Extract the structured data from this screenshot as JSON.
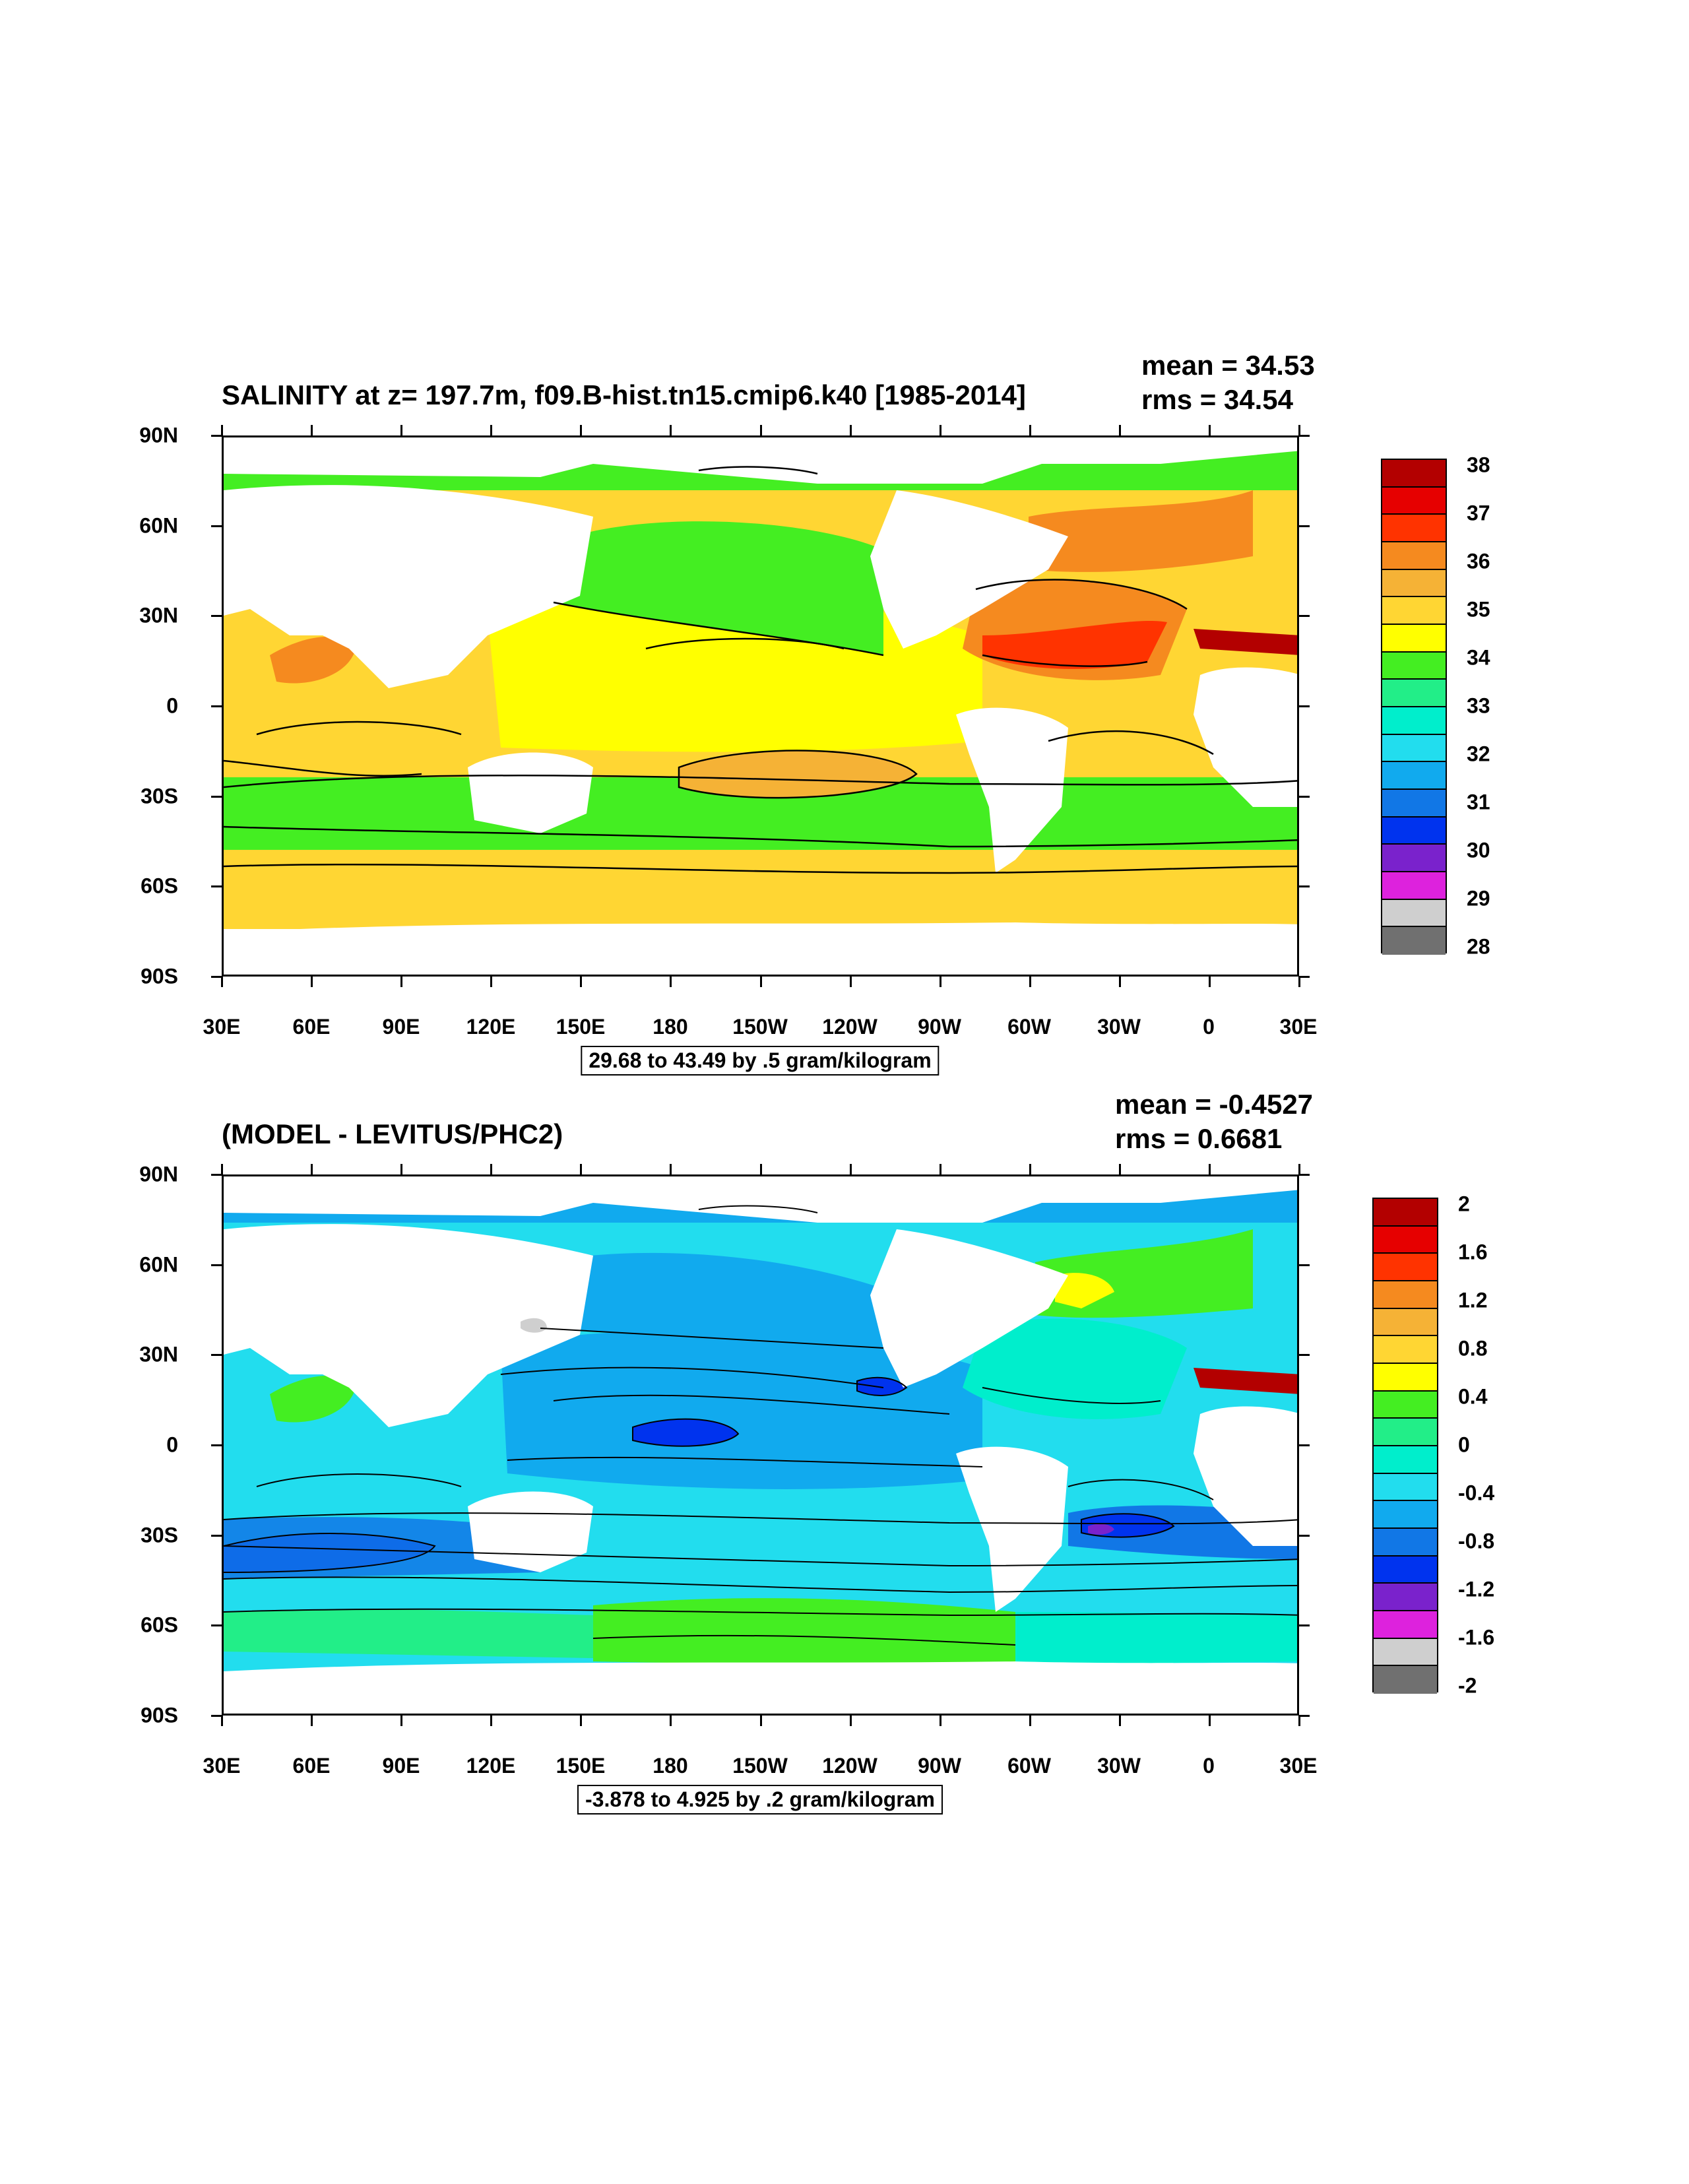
{
  "panels": [
    {
      "id": "top",
      "title": "SALINITY at z= 197.7m, f09.B-hist.tn15.cmip6.k40 [1985-2014]",
      "mean": "mean = 34.53",
      "rms": "rms = 34.54",
      "info": "29.68 to 43.49 by .5 gram/kilogram",
      "colorbar": {
        "labels": [
          "38",
          "37",
          "36",
          "35",
          "34",
          "33",
          "32",
          "31",
          "30",
          "29",
          "28"
        ],
        "colors": [
          "#b30000",
          "#e60000",
          "#ff3300",
          "#f58a1f",
          "#f5b236",
          "#ffd633",
          "#ffff00",
          "#44ee22",
          "#22ee88",
          "#00eecc",
          "#22ddee",
          "#11aaee",
          "#1177e6",
          "#0033ee",
          "#7a22cc",
          "#dd22dd",
          "#cfcfcf",
          "#707070"
        ]
      }
    },
    {
      "id": "bottom",
      "title": "(MODEL - LEVITUS/PHC2)",
      "mean": "mean = -0.4527",
      "rms": "rms = 0.6681",
      "info": "-3.878 to 4.925 by .2 gram/kilogram",
      "colorbar": {
        "labels": [
          "2",
          "1.6",
          "1.2",
          "0.8",
          "0.4",
          "0",
          "-0.4",
          "-0.8",
          "-1.2",
          "-1.6",
          "-2"
        ],
        "colors": [
          "#b30000",
          "#e60000",
          "#ff3300",
          "#f58a1f",
          "#f5b236",
          "#ffd633",
          "#ffff00",
          "#44ee22",
          "#22ee88",
          "#00eecc",
          "#22ddee",
          "#11aaee",
          "#1177e6",
          "#0033ee",
          "#7a22cc",
          "#dd22dd",
          "#cfcfcf",
          "#707070"
        ]
      }
    }
  ],
  "axes": {
    "lat_labels": [
      "90N",
      "60N",
      "30N",
      "0",
      "30S",
      "60S",
      "90S"
    ],
    "lon_labels": [
      "30E",
      "60E",
      "90E",
      "120E",
      "150E",
      "180",
      "150W",
      "120W",
      "90W",
      "60W",
      "30W",
      "0",
      "30E"
    ]
  },
  "colors": {
    "land": "#ffffff",
    "contour": "#000000"
  }
}
